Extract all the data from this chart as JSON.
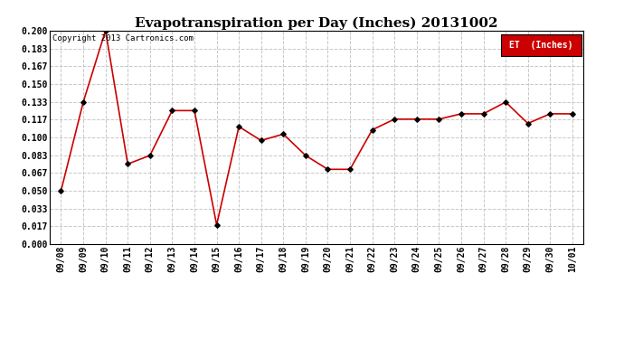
{
  "title": "Evapotranspiration per Day (Inches) 20131002",
  "copyright": "Copyright 2013 Cartronics.com",
  "legend_label": "ET  (Inches)",
  "dates": [
    "09/08",
    "09/09",
    "09/10",
    "09/11",
    "09/12",
    "09/13",
    "09/14",
    "09/15",
    "09/16",
    "09/17",
    "09/18",
    "09/19",
    "09/20",
    "09/21",
    "09/22",
    "09/23",
    "09/24",
    "09/25",
    "09/26",
    "09/27",
    "09/28",
    "09/29",
    "09/30",
    "10/01"
  ],
  "values": [
    0.05,
    0.133,
    0.2,
    0.075,
    0.083,
    0.125,
    0.125,
    0.018,
    0.11,
    0.097,
    0.103,
    0.083,
    0.07,
    0.07,
    0.107,
    0.117,
    0.117,
    0.117,
    0.122,
    0.122,
    0.133,
    0.113,
    0.122,
    0.122
  ],
  "ylim": [
    0.0,
    0.2
  ],
  "yticks": [
    0.0,
    0.017,
    0.033,
    0.05,
    0.067,
    0.083,
    0.1,
    0.117,
    0.133,
    0.15,
    0.167,
    0.183,
    0.2
  ],
  "line_color": "#cc0000",
  "marker_color": "#000000",
  "legend_bg": "#cc0000",
  "legend_text_color": "#ffffff",
  "background_color": "#ffffff",
  "grid_color": "#c8c8c8",
  "title_fontsize": 11,
  "tick_fontsize": 7,
  "copyright_fontsize": 6.5,
  "legend_fontsize": 7
}
